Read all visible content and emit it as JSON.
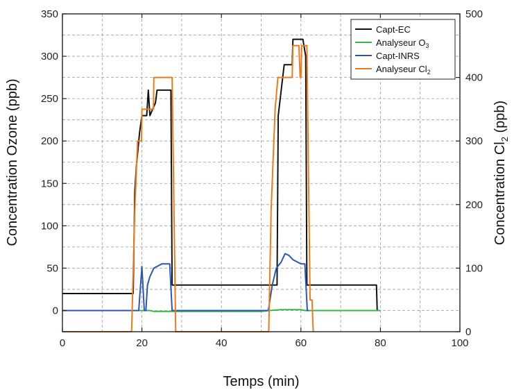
{
  "chart_data": {
    "type": "line",
    "xlabel": "Temps (min)",
    "ylabel_left": "Concentration Ozone (ppb)",
    "ylabel_right_prefix": "Concentration Cl",
    "ylabel_right_sub": "2",
    "ylabel_right_suffix": "  (ppb)",
    "xlim": [
      0,
      100
    ],
    "ylim_left": [
      -25,
      350
    ],
    "ylim_right": [
      0,
      500
    ],
    "x_ticks": [
      0,
      20,
      40,
      60,
      80,
      100
    ],
    "y_ticks_left": [
      0,
      50,
      100,
      150,
      200,
      250,
      300,
      350
    ],
    "y_ticks_right": [
      0,
      100,
      200,
      300,
      400,
      500
    ],
    "grid": true,
    "legend_position": "top-right",
    "series": [
      {
        "name": "Capt-EC",
        "name_sub": "",
        "color": "#111111",
        "axis": "left",
        "points": [
          [
            0,
            20
          ],
          [
            17.8,
            20
          ],
          [
            18.2,
            140
          ],
          [
            18.6,
            170
          ],
          [
            19.4,
            210
          ],
          [
            20,
            230
          ],
          [
            21.2,
            230
          ],
          [
            21.6,
            260
          ],
          [
            22,
            230
          ],
          [
            23.4,
            245
          ],
          [
            23.8,
            260
          ],
          [
            27.3,
            260
          ],
          [
            27.6,
            30
          ],
          [
            54,
            30
          ],
          [
            54.3,
            230
          ],
          [
            55.8,
            290
          ],
          [
            57.8,
            290
          ],
          [
            58,
            320
          ],
          [
            60.5,
            320
          ],
          [
            61.2,
            300
          ],
          [
            61.5,
            30
          ],
          [
            79,
            30
          ],
          [
            79.2,
            0
          ]
        ]
      },
      {
        "name": "Analyseur O",
        "name_sub": "3",
        "color": "#39b54a",
        "axis": "left",
        "points": [
          [
            0,
            0
          ],
          [
            22,
            0
          ],
          [
            23,
            -1
          ],
          [
            25,
            -1
          ],
          [
            25.5,
            -1
          ],
          [
            50,
            -1
          ],
          [
            52,
            0
          ],
          [
            55,
            1
          ],
          [
            60,
            1
          ],
          [
            61,
            0
          ],
          [
            80,
            0
          ]
        ]
      },
      {
        "name": "Capt-INRS",
        "name_sub": "",
        "color": "#2a56b8",
        "axis": "left",
        "points": [
          [
            0,
            0
          ],
          [
            19.2,
            0
          ],
          [
            20,
            52
          ],
          [
            20.6,
            0
          ],
          [
            21,
            0
          ],
          [
            21.4,
            30
          ],
          [
            22,
            40
          ],
          [
            23,
            50
          ],
          [
            25,
            55
          ],
          [
            27,
            55
          ],
          [
            27.6,
            0
          ],
          [
            51.8,
            0
          ],
          [
            52.8,
            30
          ],
          [
            53.8,
            50
          ],
          [
            55,
            57
          ],
          [
            56,
            67
          ],
          [
            57,
            65
          ],
          [
            58,
            60
          ],
          [
            60,
            55
          ],
          [
            61,
            55
          ],
          [
            61.6,
            0
          ],
          [
            62,
            0
          ]
        ]
      },
      {
        "name": "Analyseur Cl",
        "name_sub": "2",
        "color": "#f07a1a",
        "axis": "right",
        "points": [
          [
            0,
            0
          ],
          [
            17.4,
            0
          ],
          [
            18.2,
            190
          ],
          [
            18.9,
            300
          ],
          [
            19.9,
            300
          ],
          [
            20,
            350
          ],
          [
            22.9,
            350
          ],
          [
            23,
            400
          ],
          [
            27.6,
            400
          ],
          [
            28.5,
            0
          ],
          [
            51.9,
            0
          ],
          [
            52.5,
            190
          ],
          [
            53.5,
            350
          ],
          [
            54.2,
            400
          ],
          [
            57.8,
            400
          ],
          [
            58,
            450
          ],
          [
            59.5,
            450
          ],
          [
            59.8,
            400
          ],
          [
            60,
            400
          ],
          [
            60.2,
            450
          ],
          [
            61.5,
            450
          ],
          [
            62.3,
            50
          ],
          [
            62.8,
            50
          ],
          [
            63.1,
            0
          ]
        ]
      }
    ]
  }
}
